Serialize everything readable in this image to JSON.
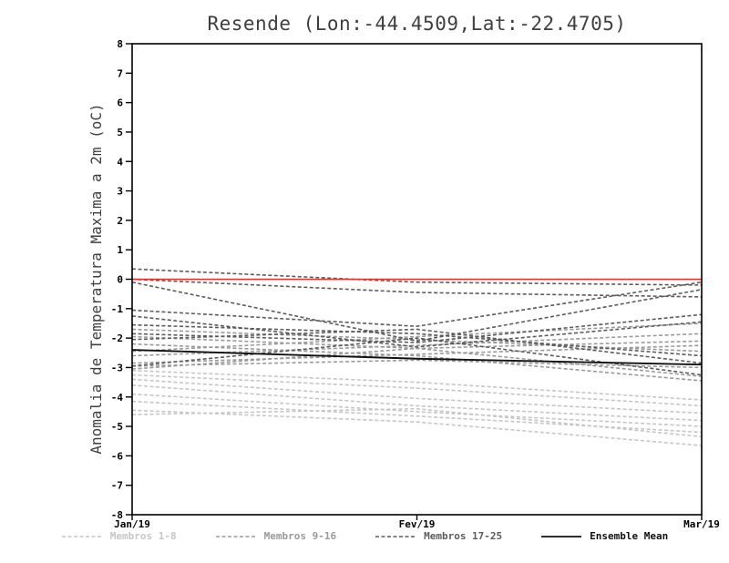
{
  "chart_data": {
    "type": "line",
    "title": "Resende (Lon:-44.4509,Lat:-22.4705)",
    "ylabel": "Anomalia de Temperatura Maxima a 2m (oC)",
    "x": [
      "Jan/19",
      "Fev/19",
      "Mar/19"
    ],
    "ylim": [
      -8,
      8
    ],
    "y_ticks": [
      8,
      7,
      6,
      5,
      4,
      3,
      2,
      1,
      0,
      -1,
      -2,
      -3,
      -4,
      -5,
      -6,
      -7,
      -8
    ],
    "zero_line_color": "#e8312a",
    "axis_color": "#000000",
    "groups": [
      {
        "name": "Membros 1-8",
        "color": "#c6c6c6",
        "style": "dashed",
        "members": [
          [
            -3.25,
            -3.7,
            -4.3
          ],
          [
            -3.4,
            -4.05,
            -4.55
          ],
          [
            -3.6,
            -4.3,
            -4.8
          ],
          [
            -3.9,
            -4.5,
            -5.0
          ],
          [
            -4.15,
            -4.65,
            -5.2
          ],
          [
            -4.45,
            -4.85,
            -5.65
          ],
          [
            -4.6,
            -4.4,
            -5.35
          ],
          [
            -3.1,
            -3.5,
            -4.1
          ]
        ]
      },
      {
        "name": "Membros 9-16",
        "color": "#9a9a9a",
        "style": "dashed",
        "members": [
          [
            -2.6,
            -2.25,
            -1.85
          ],
          [
            -2.85,
            -2.55,
            -2.25
          ],
          [
            -2.95,
            -2.75,
            -3.0
          ],
          [
            -3.05,
            -2.35,
            -3.3
          ],
          [
            -2.45,
            -1.95,
            -1.5
          ],
          [
            -2.2,
            -2.6,
            -3.45
          ],
          [
            -1.95,
            -2.35,
            -2.1
          ],
          [
            -1.7,
            -2.05,
            -2.45
          ]
        ]
      },
      {
        "name": "Membros 17-25",
        "color": "#5c5c5c",
        "style": "dashed",
        "members": [
          [
            0.35,
            -0.1,
            -0.2
          ],
          [
            0.0,
            -0.45,
            -0.6
          ],
          [
            -0.1,
            -2.1,
            -0.35
          ],
          [
            -1.05,
            -1.6,
            -0.1
          ],
          [
            -1.25,
            -2.3,
            -1.45
          ],
          [
            -1.55,
            -1.85,
            -2.6
          ],
          [
            -1.85,
            -2.15,
            -1.2
          ],
          [
            -2.05,
            -1.7,
            -2.85
          ],
          [
            -2.95,
            -2.0,
            -3.25
          ]
        ]
      }
    ],
    "ensemble_mean": {
      "name": "Ensemble Mean",
      "color": "#111111",
      "style": "solid",
      "values": [
        -2.4,
        -2.7,
        -2.9
      ]
    },
    "legend": [
      {
        "label": "Membros 1-8",
        "color": "#c6c6c6",
        "style": "dashed"
      },
      {
        "label": "Membros 9-16",
        "color": "#9a9a9a",
        "style": "dashed"
      },
      {
        "label": "Membros 17-25",
        "color": "#5c5c5c",
        "style": "dashed"
      },
      {
        "label": "Ensemble Mean",
        "color": "#111111",
        "style": "solid"
      }
    ],
    "legend_position": "bottom",
    "grid": false
  }
}
